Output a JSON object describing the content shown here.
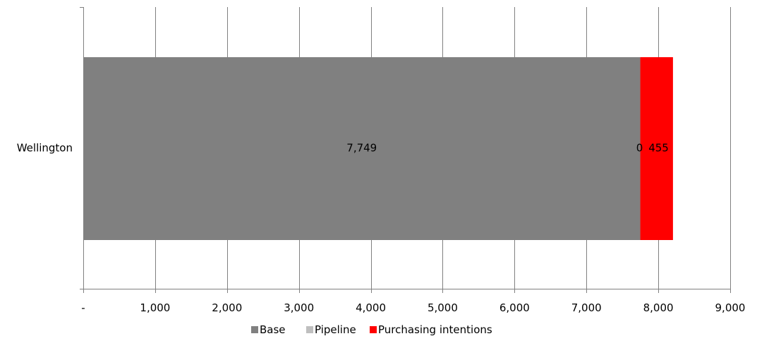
{
  "chart_data": {
    "type": "bar",
    "orientation": "horizontal",
    "stacked": true,
    "categories": [
      "Wellington"
    ],
    "series": [
      {
        "name": "Base",
        "values": [
          7749
        ],
        "labels": [
          "7,749"
        ],
        "color": "#808080"
      },
      {
        "name": "Pipeline",
        "values": [
          0
        ],
        "labels": [
          "0"
        ],
        "color": "#bfbfbf"
      },
      {
        "name": "Purchasing intentions",
        "values": [
          455
        ],
        "labels": [
          "455"
        ],
        "color": "#ff0000"
      }
    ],
    "xlim": [
      0,
      9000
    ],
    "xticks": [
      0,
      1000,
      2000,
      3000,
      4000,
      5000,
      6000,
      7000,
      8000,
      9000
    ],
    "xtick_labels": [
      "-",
      "1,000",
      "2,000",
      "3,000",
      "4,000",
      "5,000",
      "6,000",
      "7,000",
      "8,000",
      "9,000"
    ],
    "grid": true,
    "gridline_color": "#808080",
    "legend_position": "bottom",
    "title": "",
    "xlabel": "",
    "ylabel": ""
  }
}
